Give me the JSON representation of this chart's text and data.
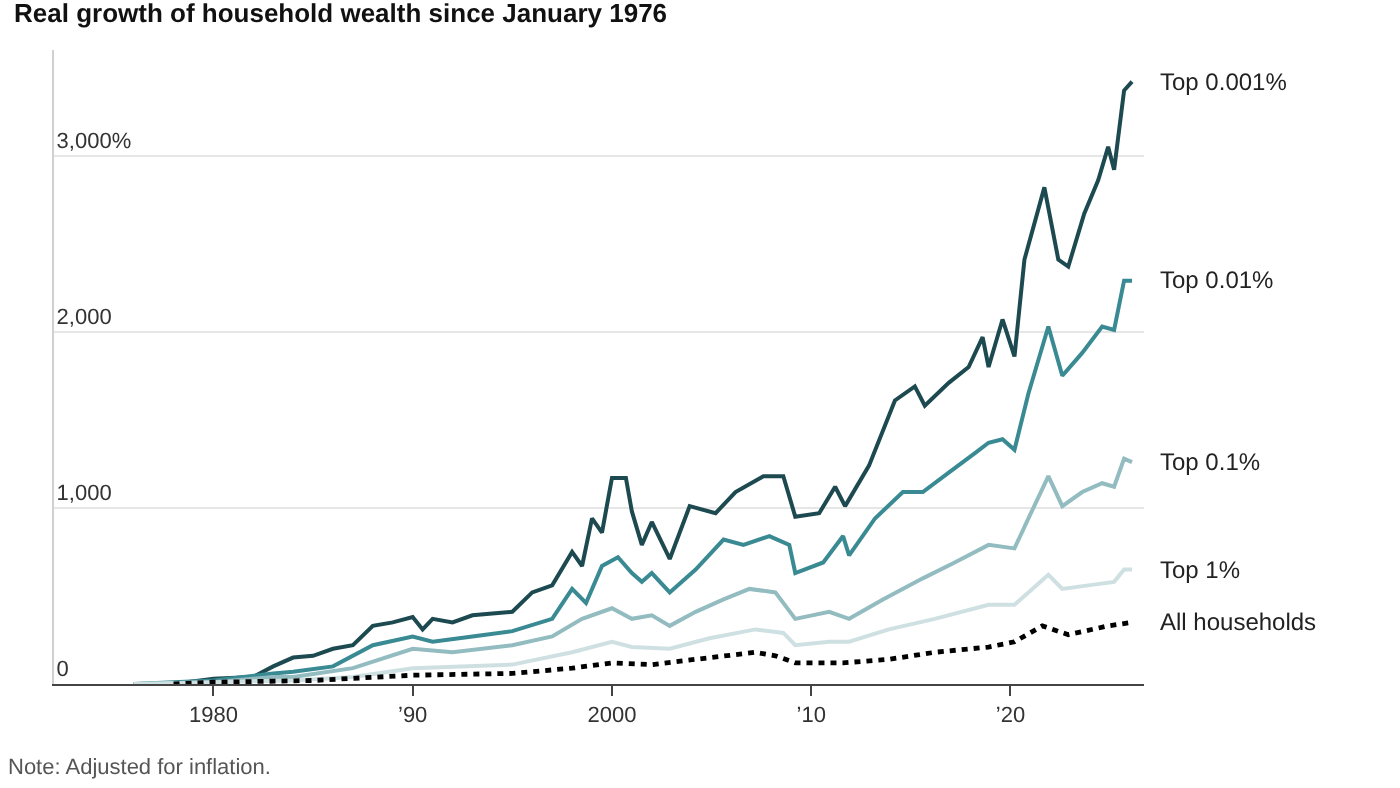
{
  "chart_data": {
    "type": "line",
    "title": "Real growth of household wealth since January 1976",
    "annotations": [
      "Note: Adjusted for inflation."
    ],
    "xlim": [
      1972,
      2026.7
    ],
    "ylim": [
      0,
      3600
    ],
    "xticks": [
      1980,
      {
        "value": 1990,
        "label": "’90"
      },
      2000,
      {
        "value": 2010,
        "label": "’10"
      },
      {
        "value": 2020,
        "label": "’20"
      }
    ],
    "yticks": [
      0,
      {
        "value": 1000,
        "label": "1,000"
      },
      {
        "value": 2000,
        "label": "2,000"
      },
      {
        "value": 3000,
        "label": "3,000%"
      }
    ],
    "grid": "y",
    "legend": false,
    "marker": "none",
    "series": [
      {
        "name": "Top 0.001%",
        "color": "#1d4a50",
        "line_style": "solid",
        "x": [
          1976,
          1978,
          1980,
          1982,
          1983,
          1984,
          1985,
          1986,
          1987,
          1988,
          1989,
          1990,
          1990.5,
          1991,
          1992,
          1993,
          1994,
          1995,
          1996,
          1997,
          1998,
          1998.5,
          1999,
          1999.5,
          2000,
          2000.7,
          2001,
          2001.5,
          2002,
          2002.9,
          2003.9,
          2005.2,
          2006.2,
          2007.6,
          2008.6,
          2009.2,
          2010.4,
          2011.2,
          2011.7,
          2012.9,
          2014.2,
          2015.2,
          2015.7,
          2016.9,
          2017.9,
          2018.6,
          2018.9,
          2019.6,
          2020.2,
          2020.7,
          2021.7,
          2022.4,
          2022.9,
          2023.7,
          2024.4,
          2024.9,
          2025.2,
          2025.7,
          2026.1
        ],
        "values": [
          0,
          0,
          30,
          40,
          100,
          150,
          160,
          200,
          220,
          330,
          350,
          380,
          310,
          370,
          350,
          390,
          400,
          410,
          520,
          560,
          750,
          670,
          940,
          860,
          1170,
          1170,
          980,
          790,
          920,
          710,
          1010,
          970,
          1090,
          1180,
          1180,
          950,
          970,
          1120,
          1010,
          1240,
          1610,
          1690,
          1580,
          1710,
          1800,
          1970,
          1800,
          2070,
          1860,
          2410,
          2820,
          2410,
          2370,
          2670,
          2860,
          3050,
          2920,
          3370,
          3420
        ]
      },
      {
        "name": "Top 0.01%",
        "color": "#3a8a93",
        "line_style": "solid",
        "x": [
          1976,
          1980,
          1983,
          1984,
          1986,
          1988,
          1990,
          1991,
          1993,
          1995,
          1997,
          1998,
          1998.7,
          1999.5,
          2000.3,
          2001,
          2001.5,
          2002,
          2002.9,
          2004.2,
          2005.6,
          2006.6,
          2007.9,
          2008.9,
          2009.2,
          2010.6,
          2011.6,
          2011.9,
          2013.2,
          2014.6,
          2015.6,
          2016.9,
          2018.2,
          2018.9,
          2019.6,
          2020.2,
          2020.9,
          2021.9,
          2022.6,
          2023.6,
          2024.6,
          2025.2,
          2025.7,
          2026.1
        ],
        "values": [
          0,
          20,
          60,
          70,
          100,
          220,
          270,
          240,
          270,
          300,
          370,
          540,
          460,
          670,
          720,
          630,
          580,
          630,
          520,
          650,
          820,
          790,
          840,
          790,
          630,
          690,
          840,
          730,
          940,
          1090,
          1090,
          1200,
          1310,
          1370,
          1390,
          1330,
          1650,
          2030,
          1750,
          1880,
          2030,
          2010,
          2290,
          2290
        ]
      },
      {
        "name": "Top 0.1%",
        "color": "#93bcc0",
        "line_style": "solid",
        "x": [
          1976,
          1980,
          1983,
          1984,
          1987,
          1990,
          1992,
          1995,
          1997,
          1998.5,
          2000,
          2001,
          2002,
          2002.9,
          2004.2,
          2005.6,
          2006.9,
          2008.2,
          2009.2,
          2010.9,
          2011.9,
          2013.6,
          2015.6,
          2017.2,
          2018.9,
          2020.2,
          2020.9,
          2021.9,
          2022.6,
          2023.6,
          2024.6,
          2025.2,
          2025.7,
          2026.1
        ],
        "values": [
          0,
          10,
          40,
          40,
          90,
          200,
          180,
          220,
          270,
          370,
          430,
          370,
          390,
          330,
          410,
          480,
          540,
          520,
          370,
          410,
          370,
          480,
          600,
          690,
          790,
          770,
          940,
          1180,
          1010,
          1090,
          1140,
          1120,
          1280,
          1260
        ]
      },
      {
        "name": "Top 1%",
        "color": "#cfe0e2",
        "line_style": "solid",
        "x": [
          1976,
          1980,
          1984,
          1987,
          1990,
          1995,
          1998,
          2000,
          2001,
          2002.9,
          2004.9,
          2007.2,
          2008.6,
          2009.2,
          2010.9,
          2011.9,
          2013.9,
          2016.2,
          2018.9,
          2020.2,
          2020.9,
          2021.9,
          2022.6,
          2023.9,
          2025.2,
          2025.7,
          2026.1
        ],
        "values": [
          0,
          10,
          20,
          40,
          90,
          110,
          180,
          240,
          210,
          200,
          260,
          310,
          290,
          220,
          240,
          240,
          310,
          370,
          450,
          450,
          520,
          620,
          540,
          560,
          580,
          650,
          650
        ]
      },
      {
        "name": "All households",
        "color": "#000000",
        "line_style": "dotted",
        "x": [
          1978,
          1980,
          1985,
          1990,
          1995,
          1998,
          2000,
          2002,
          2004.2,
          2007.2,
          2008.2,
          2009.2,
          2011.6,
          2013.9,
          2016.2,
          2018.9,
          2020.2,
          2021.6,
          2022.9,
          2024.9,
          2026.1
        ],
        "values": [
          0,
          10,
          20,
          50,
          60,
          90,
          120,
          110,
          140,
          180,
          160,
          120,
          120,
          140,
          180,
          210,
          240,
          330,
          280,
          330,
          350
        ]
      }
    ]
  }
}
